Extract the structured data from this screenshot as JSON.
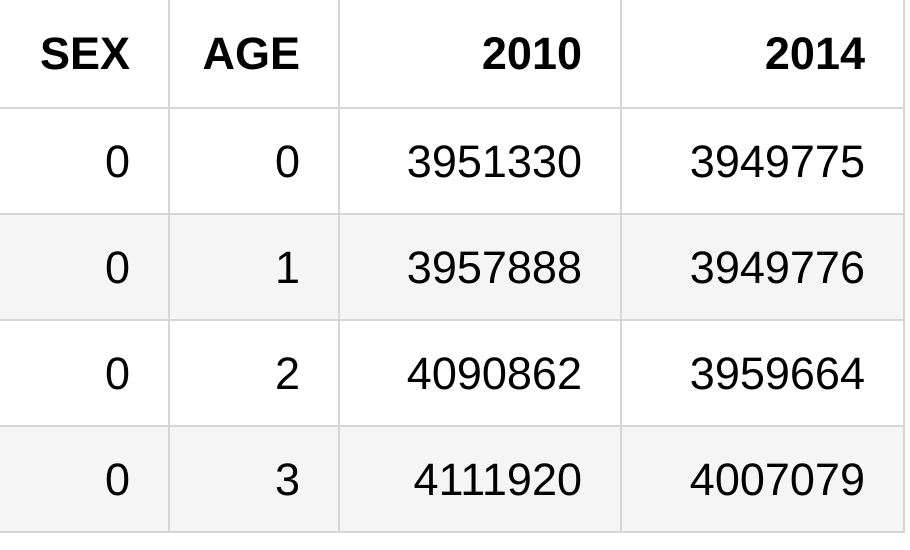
{
  "table": {
    "columns": [
      "SEX",
      "AGE",
      "2010",
      "2014"
    ],
    "rows": [
      [
        "0",
        "0",
        "3951330",
        "3949775"
      ],
      [
        "0",
        "1",
        "3957888",
        "3949776"
      ],
      [
        "0",
        "2",
        "4090862",
        "3959664"
      ],
      [
        "0",
        "3",
        "4111920",
        "4007079"
      ]
    ]
  },
  "colors": {
    "border": "#d6d6d6",
    "striped_row": "#f5f5f5",
    "text": "#000000"
  }
}
